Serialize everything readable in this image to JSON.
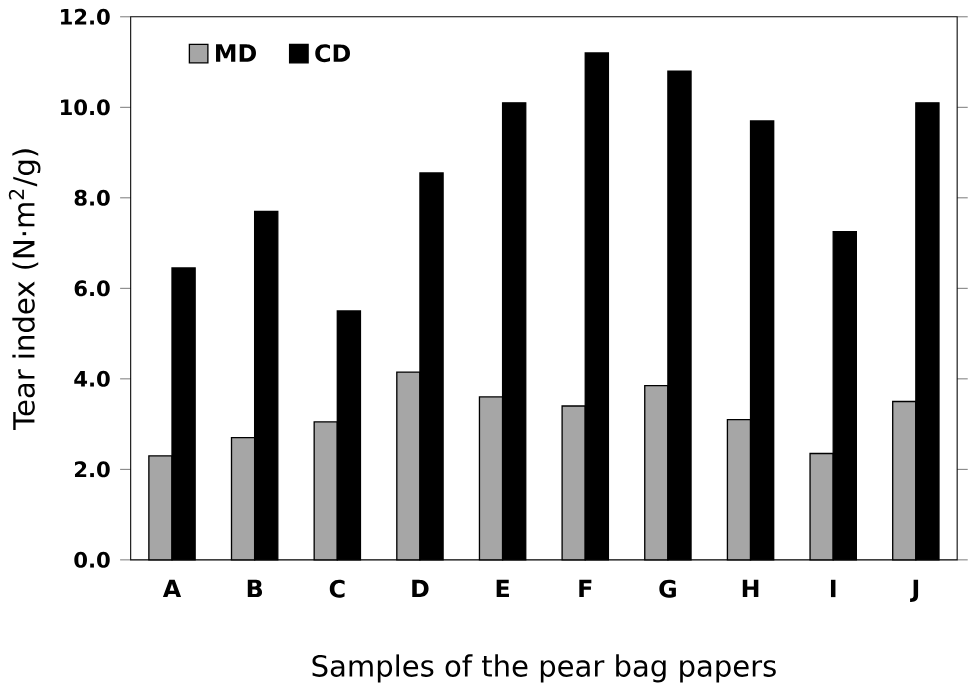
{
  "chart_data": {
    "type": "bar",
    "xlabel": "Samples of the pear bag papers",
    "ylabel": "Tear index (N·m$^{2}$/g)",
    "categories": [
      "A",
      "B",
      "C",
      "D",
      "E",
      "F",
      "G",
      "H",
      "I",
      "J"
    ],
    "series": [
      {
        "name": "MD",
        "color": "#a6a6a6",
        "values": [
          2.3,
          2.7,
          3.05,
          4.15,
          3.6,
          3.4,
          3.85,
          3.1,
          2.35,
          3.5
        ]
      },
      {
        "name": "CD",
        "color": "#000000",
        "values": [
          6.45,
          7.7,
          5.5,
          8.55,
          10.1,
          11.2,
          10.8,
          9.7,
          7.25,
          10.1
        ]
      }
    ],
    "ylim": [
      0,
      12
    ],
    "yticks": [
      {
        "value": 0,
        "label": "0.0"
      },
      {
        "value": 2,
        "label": "2.0"
      },
      {
        "value": 4,
        "label": "4.0"
      },
      {
        "value": 6,
        "label": "6.0"
      },
      {
        "value": 8,
        "label": "8.0"
      },
      {
        "value": 10,
        "label": "10.0"
      },
      {
        "value": 12,
        "label": "12.0"
      }
    ],
    "grid": false,
    "legend": "top left"
  }
}
